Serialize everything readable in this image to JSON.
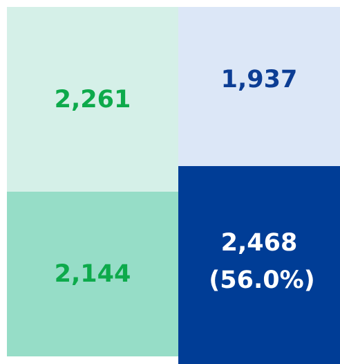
{
  "tiles": [
    {
      "label": "2,261"
    },
    {
      "label": "1,937"
    },
    {
      "label": "2,144"
    },
    {
      "label": "2,468",
      "sublabel": "(56.0%)"
    }
  ]
}
